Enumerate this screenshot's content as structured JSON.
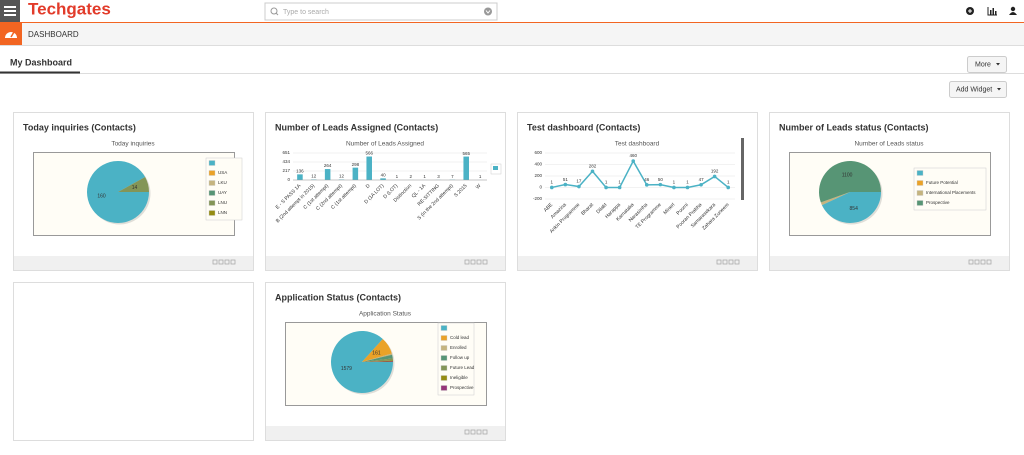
{
  "header": {
    "logo": "Techgates",
    "search_placeholder": "Type to search"
  },
  "breadcrumb": "DASHBOARD",
  "tab": "My Dashboard",
  "buttons": {
    "more": "More",
    "add_widget": "Add Widget"
  },
  "widgets": [
    {
      "title": "Today inquiries (Contacts)",
      "chart_data": {
        "type": "pie",
        "title": "Today inquiries",
        "categories": [
          null,
          "USA",
          "LKU",
          "UAY",
          "LNU",
          "LNN"
        ],
        "values": [
          160,
          0,
          0,
          0,
          14,
          0
        ],
        "colors": [
          "#4bb2c5",
          "#eaa228",
          "#c5b47f",
          "#579575",
          "#839557",
          "#958c12"
        ]
      }
    },
    {
      "title": "Number of Leads Assigned (Contacts)",
      "chart_data": {
        "type": "bar",
        "title": "Number of Leads Assigned",
        "categories": [
          "E - S PASS 1A",
          "B (2nd attempt in 2015)",
          "C (1st attempt)",
          "C (2nd attempt)",
          "C (1st attempt)",
          "D",
          "D (1A LOT)",
          "D (LOT)",
          "Distinction",
          "QL - 1A",
          "RE-SITTING",
          "S (in the 2nd attempt)",
          "S 2015",
          "W"
        ],
        "values": [
          136,
          12,
          264,
          12,
          298,
          566,
          40,
          1,
          2,
          1,
          3,
          7,
          565,
          1
        ],
        "color": "#4bb2c5",
        "ylim": [
          0,
          651
        ],
        "yticks": [
          0,
          217,
          434,
          651
        ],
        "grid": true
      }
    },
    {
      "title": "Test dashboard (Contacts)",
      "chart_data": {
        "type": "line",
        "title": "Test dashboard",
        "categories": [
          "ABE",
          "Amazina",
          "Ankin Programme",
          "Bharat",
          "Dilakt",
          "Harappa",
          "Karnataka",
          "Narasimha",
          "TE Programme",
          "Minerl",
          "Poorni",
          "Pooran Prabha",
          "Samarasekara",
          "Zahara Zuneem"
        ],
        "values": [
          1,
          51,
          17,
          282,
          1,
          1,
          460,
          46,
          50,
          1,
          1,
          47,
          192,
          1
        ],
        "color": "#4bb2c5",
        "ylim": [
          -200,
          600
        ],
        "yticks": [
          -200,
          0,
          200,
          400,
          600
        ],
        "grid": true
      }
    },
    {
      "title": "Number of Leads status (Contacts)",
      "chart_data": {
        "type": "pie",
        "title": "Number of Leads status",
        "categories": [
          null,
          "Future Potential",
          "International Placements",
          "Prospective"
        ],
        "values": [
          854,
          0,
          30,
          1100
        ],
        "colors": [
          "#4bb2c5",
          "#eaa228",
          "#c5b47f",
          "#579575"
        ]
      }
    },
    {
      "title": "Application Status (Contacts)",
      "chart_data": {
        "type": "pie",
        "title": "Application Status",
        "categories": [
          null,
          "Cold lead",
          "Enrolled",
          "Follow up",
          "Future Lead",
          "Ineligible",
          "Prospective"
        ],
        "values": [
          1579,
          161,
          12,
          35,
          20,
          8,
          6
        ],
        "colors": [
          "#4bb2c5",
          "#eaa228",
          "#c5b47f",
          "#579575",
          "#839557",
          "#958c12",
          "#953579"
        ]
      }
    }
  ]
}
